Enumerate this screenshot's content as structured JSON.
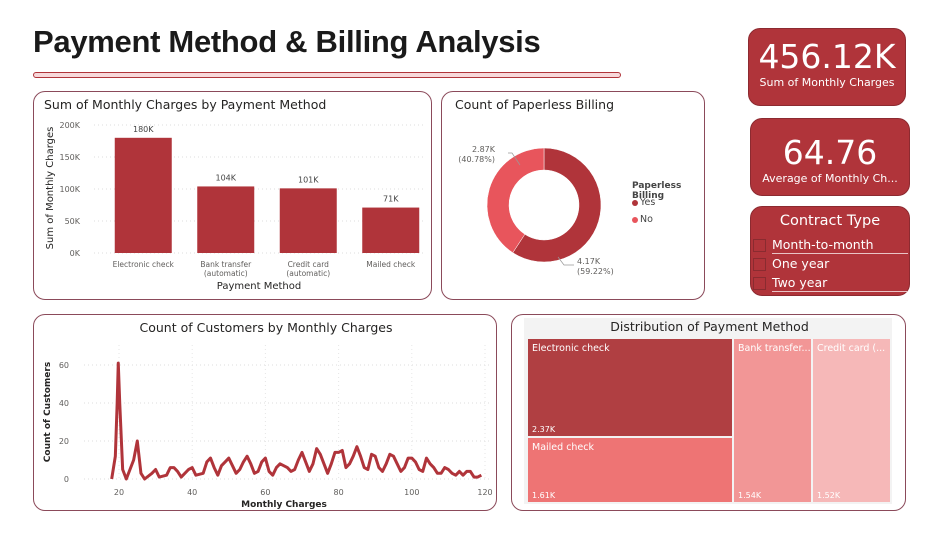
{
  "page_title": "Payment Method & Billing Analysis",
  "colors": {
    "accent": "#b0343a",
    "light_accent": "#e8555c",
    "panel_border": "#8b4a5a"
  },
  "kpis": [
    {
      "value": "456.12K",
      "label": "Sum of Monthly Charges"
    },
    {
      "value": "64.76",
      "label": "Average of Monthly Ch..."
    }
  ],
  "slicer": {
    "title": "Contract Type",
    "items": [
      {
        "label": "Month-to-month",
        "checked": false
      },
      {
        "label": "One year",
        "checked": false
      },
      {
        "label": "Two year",
        "checked": false
      }
    ]
  },
  "chart_data": [
    {
      "type": "bar",
      "title": "Sum of Monthly Charges by Payment Method",
      "xlabel": "Payment Method",
      "ylabel": "Sum of Monthly Charges",
      "categories": [
        "Electronic check",
        "Bank transfer (automatic)",
        "Credit card (automatic)",
        "Mailed check"
      ],
      "category_lines": [
        [
          "Electronic check"
        ],
        [
          "Bank transfer",
          "(automatic)"
        ],
        [
          "Credit card",
          "(automatic)"
        ],
        [
          "Mailed check"
        ]
      ],
      "values": [
        180000,
        104000,
        101000,
        71000
      ],
      "data_labels": [
        "180K",
        "104K",
        "101K",
        "71K"
      ],
      "ylim": [
        0,
        200000
      ],
      "yticks": [
        "0K",
        "50K",
        "100K",
        "150K",
        "200K"
      ],
      "grid": true,
      "color": "#b0343a"
    },
    {
      "type": "pie",
      "donut": true,
      "title": "Count of Paperless Billing",
      "legend_title": "Paperless Billing",
      "legend_position": "right",
      "slices": [
        {
          "name": "Yes",
          "value": 4170,
          "label": "4.17K",
          "percent_label": "(59.22%)",
          "percent": 59.22,
          "color": "#b0343a"
        },
        {
          "name": "No",
          "value": 2870,
          "label": "2.87K",
          "percent_label": "(40.78%)",
          "percent": 40.78,
          "color": "#e8555c"
        }
      ]
    },
    {
      "type": "line",
      "title": "Count of Customers by Monthly Charges",
      "xlabel": "Monthly Charges",
      "ylabel": "Count of Customers",
      "xlim": [
        15,
        120
      ],
      "ylim": [
        0,
        70
      ],
      "xticks": [
        "20",
        "40",
        "60",
        "80",
        "100",
        "120"
      ],
      "yticks": [
        "0",
        "20",
        "40",
        "60"
      ],
      "grid": true,
      "color": "#b0343a",
      "x": [
        18,
        19,
        19.5,
        19.8,
        20.2,
        21,
        22,
        24,
        25,
        26,
        27,
        29,
        30,
        31,
        33,
        34,
        35,
        36,
        37,
        39,
        40,
        41,
        43,
        44,
        45,
        46,
        47,
        48,
        49,
        50,
        51,
        52,
        53,
        54,
        55,
        56,
        57,
        58,
        59,
        60,
        61,
        62,
        63,
        64,
        65,
        66,
        67,
        68,
        69,
        70,
        71,
        72,
        73,
        74,
        75,
        76,
        77,
        78,
        79,
        80,
        81,
        82,
        83,
        84,
        85,
        86,
        87,
        88,
        89,
        90,
        91,
        92,
        93,
        94,
        95,
        96,
        97,
        98,
        99,
        100,
        101,
        102,
        103,
        104,
        105,
        106,
        107,
        108,
        109,
        110,
        111,
        112,
        113,
        114,
        115,
        116,
        117,
        118,
        119
      ],
      "y": [
        0,
        12,
        40,
        61,
        40,
        5,
        0,
        10,
        20,
        3,
        0,
        3,
        5,
        1,
        2,
        6,
        6,
        4,
        1,
        5,
        6,
        2,
        3,
        9,
        11,
        6,
        2,
        7,
        9,
        11,
        7,
        3,
        5,
        9,
        12,
        8,
        3,
        4,
        9,
        11,
        4,
        2,
        6,
        8,
        7,
        6,
        4,
        5,
        10,
        14,
        9,
        4,
        8,
        16,
        13,
        8,
        3,
        8,
        14,
        14,
        15,
        6,
        8,
        12,
        17,
        12,
        6,
        5,
        13,
        12,
        6,
        4,
        8,
        13,
        12,
        8,
        4,
        6,
        11,
        11,
        9,
        5,
        4,
        11,
        8,
        6,
        3,
        3,
        6,
        5,
        3,
        2,
        4,
        2,
        4,
        4,
        1,
        1,
        2
      ]
    },
    {
      "type": "treemap",
      "title": "Distribution of Payment Method",
      "items": [
        {
          "name": "Electronic check",
          "label": "Electronic check",
          "value_label": "2.37K",
          "value": 2370,
          "color": "#b03f42"
        },
        {
          "name": "Mailed check",
          "label": "Mailed check",
          "value_label": "1.61K",
          "value": 1610,
          "color": "#ee7474"
        },
        {
          "name": "Bank transfer (automatic)",
          "label": "Bank transfer...",
          "value_label": "1.54K",
          "value": 1540,
          "color": "#f29696"
        },
        {
          "name": "Credit card (automatic)",
          "label": "Credit card (...",
          "value_label": "1.52K",
          "value": 1520,
          "color": "#f6b8b8"
        }
      ]
    }
  ]
}
